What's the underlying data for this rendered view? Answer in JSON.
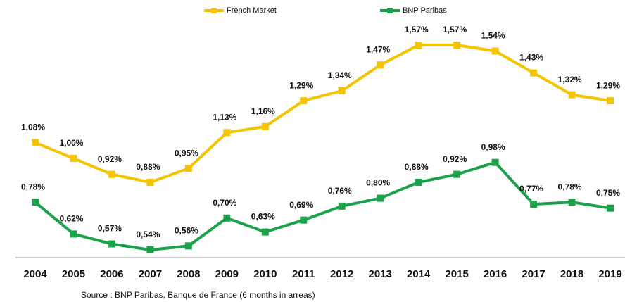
{
  "chart_data": {
    "type": "line",
    "categories": [
      "2004",
      "2005",
      "2006",
      "2007",
      "2008",
      "2009",
      "2010",
      "2011",
      "2012",
      "2013",
      "2014",
      "2015",
      "2016",
      "2017",
      "2018",
      "2019"
    ],
    "series": [
      {
        "name": "French Market",
        "color": "#f5c400",
        "values": [
          1.08,
          1.0,
          0.92,
          0.88,
          0.95,
          1.13,
          1.16,
          1.29,
          1.34,
          1.47,
          1.57,
          1.57,
          1.54,
          1.43,
          1.32,
          1.29
        ],
        "value_labels": [
          "1,08%",
          "1,00%",
          "0,92%",
          "0,88%",
          "0,95%",
          "1,13%",
          "1,16%",
          "1,29%",
          "1,34%",
          "1,47%",
          "1,57%",
          "1,57%",
          "1,54%",
          "1,43%",
          "1,32%",
          "1,29%"
        ]
      },
      {
        "name": "BNP Paribas",
        "color": "#1aa34a",
        "values": [
          0.78,
          0.62,
          0.57,
          0.54,
          0.56,
          0.7,
          0.63,
          0.69,
          0.76,
          0.8,
          0.88,
          0.92,
          0.98,
          0.77,
          0.78,
          0.75
        ],
        "value_labels": [
          "0,78%",
          "0,62%",
          "0,57%",
          "0,54%",
          "0,56%",
          "0,70%",
          "0,63%",
          "0,69%",
          "0,76%",
          "0,80%",
          "0,88%",
          "0,92%",
          "0,98%",
          "0,77%",
          "0,78%",
          "0,75%"
        ]
      }
    ],
    "source": "Source : BNP Paribas, Banque de France (6 months in arreas)"
  }
}
